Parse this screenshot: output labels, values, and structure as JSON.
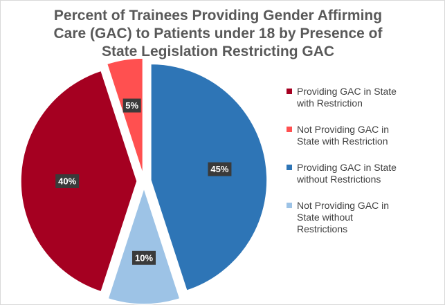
{
  "title_lines": [
    "Percent of Trainees Providing Gender Affirming",
    "Care (GAC) to Patients under 18 by Presence of",
    "State Legislation Restricting GAC"
  ],
  "chart_data": {
    "type": "pie",
    "slices": [
      {
        "label_lines": [
          "Providing GAC in State",
          "without Restrictions"
        ],
        "value": 45,
        "display": "45%",
        "color": "#2e75b6"
      },
      {
        "label_lines": [
          "Not Providing GAC in",
          "State without",
          "Restrictions"
        ],
        "value": 10,
        "display": "10%",
        "color": "#9dc3e6"
      },
      {
        "label_lines": [
          "Providing GAC in State",
          "with Restriction"
        ],
        "value": 40,
        "display": "40%",
        "color": "#a50021"
      },
      {
        "label_lines": [
          "Not Providing GAC in",
          "State with Restriction"
        ],
        "value": 5,
        "display": "5%",
        "color": "#ff5050"
      }
    ],
    "legend_order": [
      2,
      3,
      0,
      1
    ],
    "legend_position": "right",
    "exploded": true
  }
}
